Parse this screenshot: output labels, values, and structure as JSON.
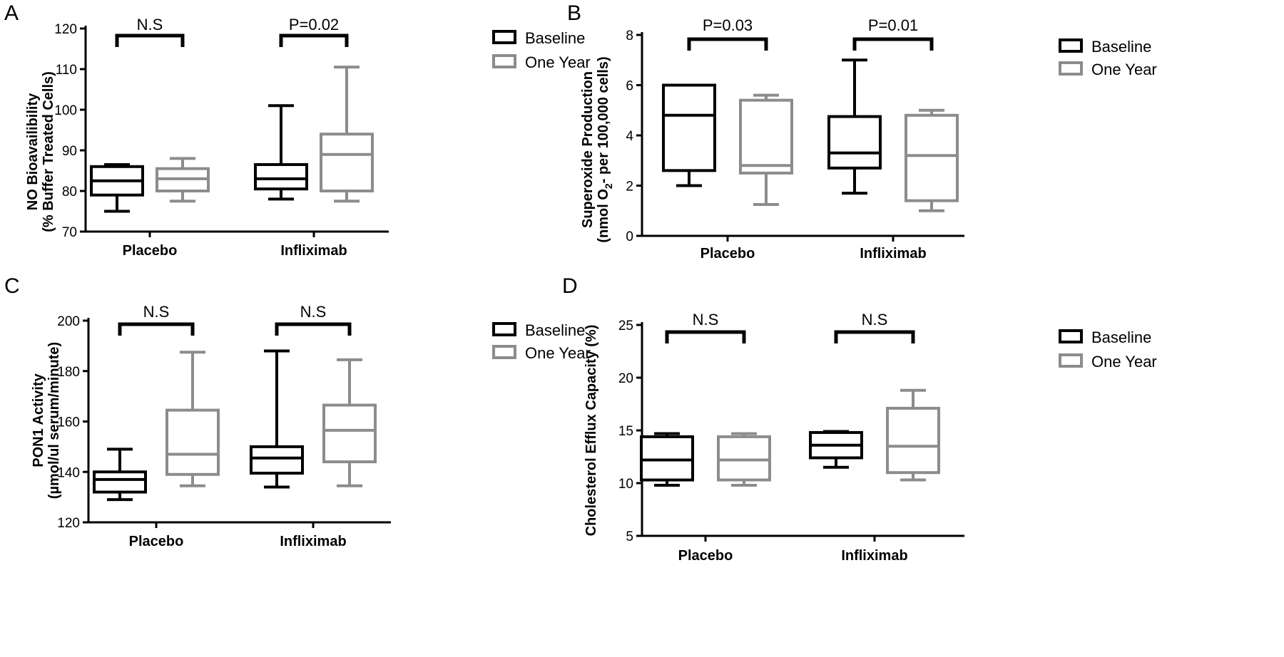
{
  "colors": {
    "baseline": "#000000",
    "one_year": "#8c8c8c"
  },
  "chart_data": [
    {
      "panel": "A",
      "type": "boxplot",
      "ylabel_line1": "NO Bioavailibility",
      "ylabel_line2": "(% Buffer Treated Cells)",
      "ylim": [
        70,
        120
      ],
      "yticks": [
        70,
        80,
        90,
        100,
        110,
        120
      ],
      "categories": [
        "Placebo",
        "Infliximab"
      ],
      "legend": [
        "Baseline",
        "One Year"
      ],
      "significance": [
        "N.S",
        "P=0.02"
      ],
      "series": [
        {
          "name": "Baseline",
          "boxes": [
            {
              "min": 75,
              "q1": 79,
              "median": 82.5,
              "q3": 86,
              "max": 86.5
            },
            {
              "min": 78,
              "q1": 80.5,
              "median": 83,
              "q3": 86.5,
              "max": 101
            }
          ]
        },
        {
          "name": "One Year",
          "boxes": [
            {
              "min": 77.5,
              "q1": 80,
              "median": 83,
              "q3": 85.5,
              "max": 88
            },
            {
              "min": 77.5,
              "q1": 80,
              "median": 89,
              "q3": 94,
              "max": 110.5
            }
          ]
        }
      ]
    },
    {
      "panel": "B",
      "type": "boxplot",
      "ylabel_line1": "Superoxide Production",
      "ylabel_line2_pre": "(nmol O",
      "ylabel_line2_sub": "2",
      "ylabel_line2_post": "- per 100,000 cells)",
      "ylim": [
        0,
        8
      ],
      "yticks": [
        0,
        2,
        4,
        6,
        8
      ],
      "categories": [
        "Placebo",
        "Infliximab"
      ],
      "legend": [
        "Baseline",
        "One Year"
      ],
      "significance": [
        "P=0.03",
        "P=0.01"
      ],
      "series": [
        {
          "name": "Baseline",
          "boxes": [
            {
              "min": 2.0,
              "q1": 2.6,
              "median": 4.8,
              "q3": 6.0,
              "max": 6.0
            },
            {
              "min": 1.7,
              "q1": 2.7,
              "median": 3.3,
              "q3": 4.75,
              "max": 7.0
            }
          ]
        },
        {
          "name": "One Year",
          "boxes": [
            {
              "min": 1.25,
              "q1": 2.5,
              "median": 2.8,
              "q3": 5.4,
              "max": 5.6
            },
            {
              "min": 1.0,
              "q1": 1.4,
              "median": 3.2,
              "q3": 4.8,
              "max": 5.0
            }
          ]
        }
      ]
    },
    {
      "panel": "C",
      "type": "boxplot",
      "ylabel_line1": "PON1 Activity",
      "ylabel_line2": "(µmol/ul serum/minute)",
      "ylim": [
        120,
        200
      ],
      "yticks": [
        120,
        140,
        160,
        180,
        200
      ],
      "categories": [
        "Placebo",
        "Infliximab"
      ],
      "legend": [
        "Baseline",
        "One Year"
      ],
      "significance": [
        "N.S",
        "N.S"
      ],
      "series": [
        {
          "name": "Baseline",
          "boxes": [
            {
              "min": 129,
              "q1": 132,
              "median": 137,
              "q3": 140,
              "max": 149
            },
            {
              "min": 134,
              "q1": 139.5,
              "median": 145.5,
              "q3": 150,
              "max": 188
            }
          ]
        },
        {
          "name": "One Year",
          "boxes": [
            {
              "min": 134.5,
              "q1": 139,
              "median": 147,
              "q3": 164.5,
              "max": 187.5
            },
            {
              "min": 134.5,
              "q1": 144,
              "median": 156.5,
              "q3": 166.5,
              "max": 184.5
            }
          ]
        }
      ]
    },
    {
      "panel": "D",
      "type": "boxplot",
      "ylabel_line1": "Cholesterol Efflux Capacity (%)",
      "ylabel_line2": "",
      "ylim": [
        5,
        25
      ],
      "yticks": [
        5,
        10,
        15,
        20,
        25
      ],
      "categories": [
        "Placebo",
        "Infliximab"
      ],
      "legend": [
        "Baseline",
        "One Year"
      ],
      "significance": [
        "N.S",
        "N.S"
      ],
      "series": [
        {
          "name": "Baseline",
          "boxes": [
            {
              "min": 9.8,
              "q1": 10.3,
              "median": 12.2,
              "q3": 14.4,
              "max": 14.7
            },
            {
              "min": 11.5,
              "q1": 12.4,
              "median": 13.6,
              "q3": 14.8,
              "max": 14.9
            }
          ]
        },
        {
          "name": "One Year",
          "boxes": [
            {
              "min": 9.8,
              "q1": 10.3,
              "median": 12.2,
              "q3": 14.4,
              "max": 14.7
            },
            {
              "min": 10.3,
              "q1": 11.0,
              "median": 13.5,
              "q3": 17.1,
              "max": 18.8
            }
          ]
        }
      ]
    }
  ]
}
